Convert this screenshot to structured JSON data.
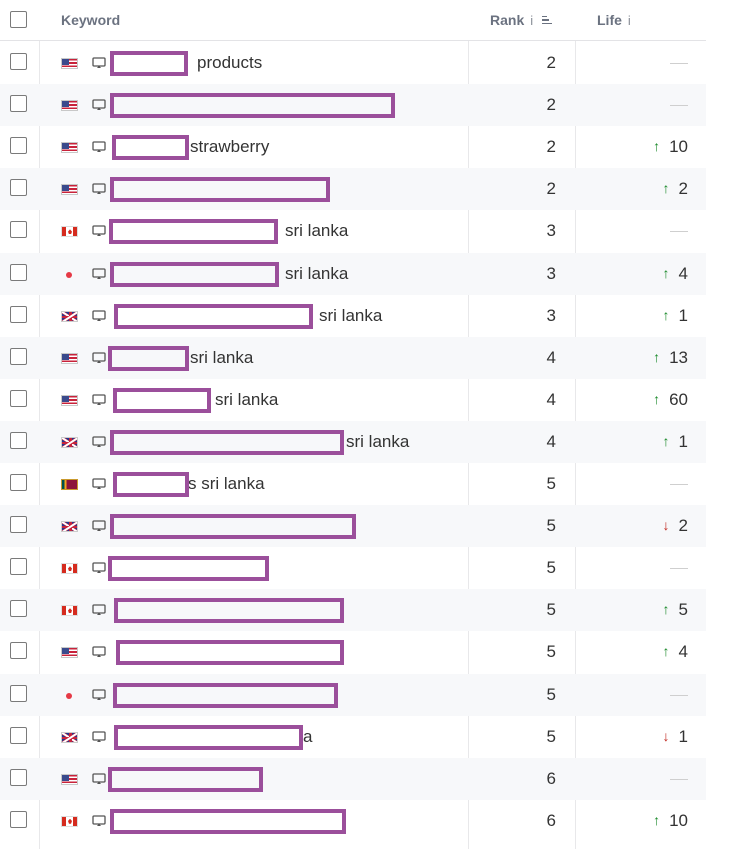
{
  "header": {
    "keyword": "Keyword",
    "rank": "Rank",
    "rank_info": "i",
    "life": "Life",
    "life_info": "i"
  },
  "colors": {
    "up": "#1a8a2a",
    "down": "#c0281f",
    "redaction": "#9b4f9b"
  },
  "icons": {
    "device": "desktop-icon",
    "sort": "sort-lines-icon",
    "up": "arrow-up-icon",
    "down": "arrow-down-icon"
  },
  "rows": [
    {
      "flag": "us",
      "keyword": "products",
      "rank": "2",
      "life": "",
      "dir": ""
    },
    {
      "flag": "us",
      "keyword": "",
      "rank": "2",
      "life": "",
      "dir": ""
    },
    {
      "flag": "us",
      "keyword": "strawberry",
      "rank": "2",
      "life": "10",
      "dir": "up"
    },
    {
      "flag": "us",
      "keyword": "",
      "rank": "2",
      "life": "2",
      "dir": "up"
    },
    {
      "flag": "ca",
      "keyword": "sri lanka",
      "rank": "3",
      "life": "",
      "dir": ""
    },
    {
      "flag": "jp",
      "keyword": "sri lanka",
      "rank": "3",
      "life": "4",
      "dir": "up"
    },
    {
      "flag": "gb",
      "keyword": "sri lanka",
      "rank": "3",
      "life": "1",
      "dir": "up"
    },
    {
      "flag": "us",
      "keyword": "sri lanka",
      "rank": "4",
      "life": "13",
      "dir": "up"
    },
    {
      "flag": "us",
      "keyword": "sri lanka",
      "rank": "4",
      "life": "60",
      "dir": "up"
    },
    {
      "flag": "gb",
      "keyword": "sri lanka",
      "rank": "4",
      "life": "1",
      "dir": "up"
    },
    {
      "flag": "lk",
      "keyword": "s sri lanka",
      "rank": "5",
      "life": "",
      "dir": ""
    },
    {
      "flag": "gb",
      "keyword": "",
      "rank": "5",
      "life": "2",
      "dir": "down"
    },
    {
      "flag": "ca",
      "keyword": "",
      "rank": "5",
      "life": "",
      "dir": ""
    },
    {
      "flag": "ca",
      "keyword": "",
      "rank": "5",
      "life": "5",
      "dir": "up"
    },
    {
      "flag": "us",
      "keyword": "",
      "rank": "5",
      "life": "4",
      "dir": "up"
    },
    {
      "flag": "jp",
      "keyword": "",
      "rank": "5",
      "life": "",
      "dir": ""
    },
    {
      "flag": "gb",
      "keyword": "a",
      "rank": "5",
      "life": "1",
      "dir": "down"
    },
    {
      "flag": "us",
      "keyword": "",
      "rank": "6",
      "life": "",
      "dir": ""
    },
    {
      "flag": "ca",
      "keyword": "",
      "rank": "6",
      "life": "10",
      "dir": "up"
    }
  ]
}
